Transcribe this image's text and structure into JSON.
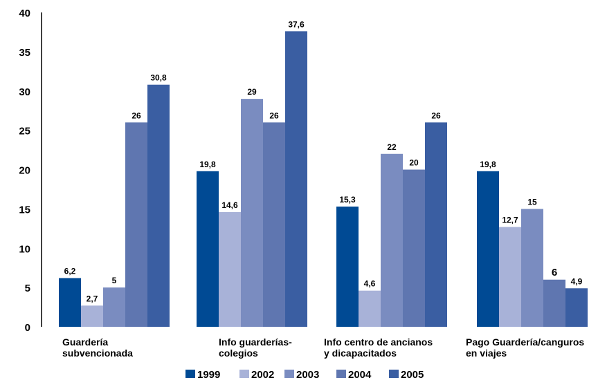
{
  "chart_data": {
    "type": "bar",
    "categories": [
      [
        "Guardería",
        "subvencionada"
      ],
      [
        "Info guarderías-",
        "colegios"
      ],
      [
        "Info centro de ancianos",
        "y dicapacitados"
      ],
      [
        "Pago Guardería/canguros",
        "en viajes"
      ]
    ],
    "series": [
      {
        "name": "1999",
        "color": "#004a94",
        "values": [
          6.2,
          19.8,
          15.3,
          19.8
        ],
        "labels": [
          "6,2",
          "19,8",
          "15,3",
          "19,8"
        ]
      },
      {
        "name": "2002",
        "color": "#a8b2d8",
        "values": [
          2.7,
          14.6,
          4.6,
          12.7
        ],
        "labels": [
          "2,7",
          "14,6",
          "4,6",
          "12,7"
        ]
      },
      {
        "name": "2003",
        "color": "#7a8cc0",
        "values": [
          5,
          29,
          22,
          15
        ],
        "labels": [
          "5",
          "29",
          "22",
          "15"
        ]
      },
      {
        "name": "2004",
        "color": "#5f76b0",
        "values": [
          26,
          26,
          20,
          6
        ],
        "labels": [
          "26",
          "26",
          "20",
          "6"
        ]
      },
      {
        "name": "2005",
        "color": "#3a5ea2",
        "values": [
          30.8,
          37.6,
          26,
          4.9
        ],
        "labels": [
          "30,8",
          "37,6",
          "26",
          "4,9"
        ]
      }
    ],
    "yticks": [
      "0",
      "5",
      "10",
      "15",
      "20",
      "25",
      "30",
      "35",
      "40"
    ],
    "ylim": [
      0,
      40
    ],
    "legend_position": "bottom-center",
    "grid": false
  }
}
